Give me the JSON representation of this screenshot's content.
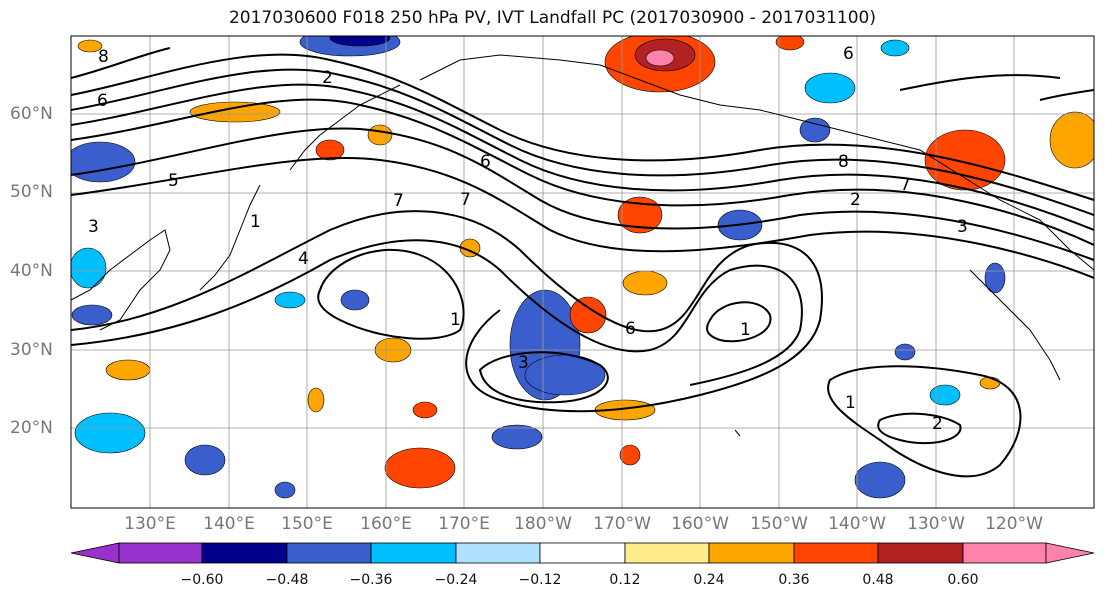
{
  "title": "2017030600 F018 250 hPa PV, IVT Landfall PC (2017030900 - 2017031100)",
  "lat_labels": [
    "60°N",
    "50°N",
    "40°N",
    "30°N",
    "20°N"
  ],
  "lon_labels": [
    "130°E",
    "140°E",
    "150°E",
    "160°E",
    "170°E",
    "180°W",
    "170°W",
    "160°W",
    "150°W",
    "140°W",
    "130°W",
    "120°W"
  ],
  "contour_labels": [
    "2",
    "6",
    "5",
    "4",
    "8",
    "7",
    "1",
    "3",
    "6",
    "7",
    "6",
    "8",
    "7",
    "2",
    "3",
    "1",
    "6",
    "1",
    "3",
    "2",
    "1"
  ],
  "colorbar": {
    "tick_labels": [
      "−0.60",
      "−0.48",
      "−0.36",
      "−0.24",
      "−0.12",
      "0.12",
      "0.24",
      "0.36",
      "0.48",
      "0.60"
    ],
    "colors": [
      "#9932cc",
      "#00008b",
      "#3a5fcd",
      "#00bfff",
      "#b0e2ff",
      "#ffffff",
      "#ffec8b",
      "#ffa500",
      "#ff4500",
      "#b22222",
      "#ff82ab"
    ]
  }
}
